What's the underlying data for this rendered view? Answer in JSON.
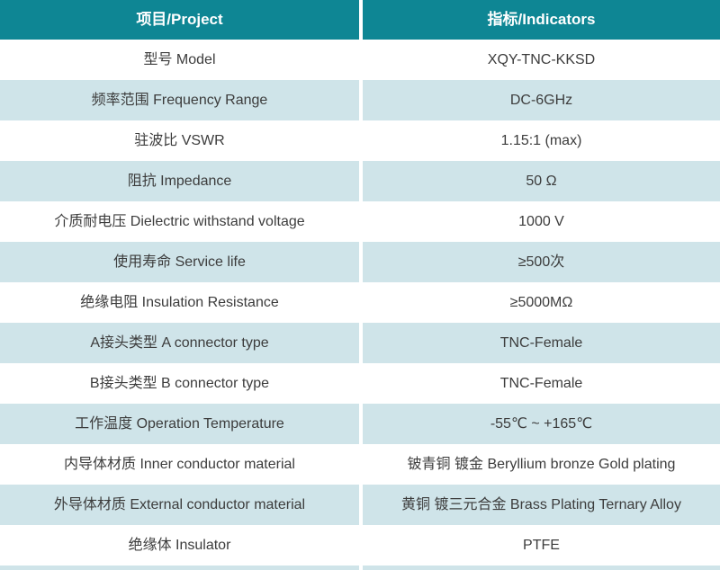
{
  "colors": {
    "header_bg": "#0E8694",
    "header_text": "#FFFFFF",
    "row_bg": "#FFFFFF",
    "row_alt_bg": "#CFE4E9",
    "body_text": "#3C3C3C",
    "divider": "#FFFFFF"
  },
  "table": {
    "columns": [
      {
        "key": "project",
        "label": "项目/Project"
      },
      {
        "key": "indicator",
        "label": "指标/Indicators"
      }
    ],
    "rows": [
      {
        "project": "型号 Model",
        "indicator": "XQY-TNC-KKSD"
      },
      {
        "project": "频率范围 Frequency Range",
        "indicator": "DC-6GHz"
      },
      {
        "project": "驻波比 VSWR",
        "indicator": "1.15:1 (max)"
      },
      {
        "project": "阻抗 Impedance",
        "indicator": "50 Ω"
      },
      {
        "project": "介质耐电压 Dielectric withstand voltage",
        "indicator": "1000 V"
      },
      {
        "project": "使用寿命 Service life",
        "indicator": "≥500次"
      },
      {
        "project": "绝缘电阻 Insulation Resistance",
        "indicator": "≥5000MΩ"
      },
      {
        "project": "A接头类型 A connector type",
        "indicator": "TNC-Female"
      },
      {
        "project": "B接头类型 B connector type",
        "indicator": "TNC-Female"
      },
      {
        "project": "工作温度 Operation Temperature",
        "indicator": "-55℃ ~ +165℃"
      },
      {
        "project": "内导体材质 Inner conductor material",
        "indicator": "铍青铜 镀金 Beryllium bronze Gold plating"
      },
      {
        "project": "外导体材质 External conductor material",
        "indicator": "黄铜 镀三元合金 Brass Plating Ternary Alloy"
      },
      {
        "project": "绝缘体 Insulator",
        "indicator": "PTFE"
      }
    ]
  }
}
